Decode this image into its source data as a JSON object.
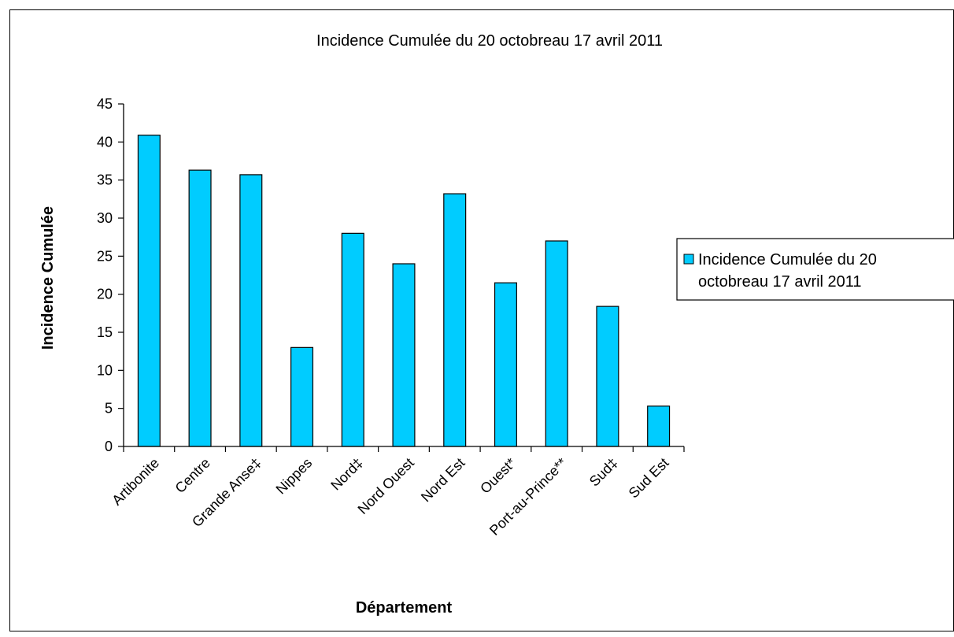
{
  "chart_data": {
    "type": "bar",
    "title": "Incidence Cumulée du 20 octobreau 17 avril 2011",
    "xlabel": "Département",
    "ylabel": "Incidence Cumulée",
    "categories": [
      "Artibonite",
      "Centre",
      "Grande Anse‡",
      "Nippes",
      "Nord‡",
      "Nord Ouest",
      "Nord Est",
      "Ouest*",
      "Port-au-Prince**",
      "Sud‡",
      "Sud Est"
    ],
    "series": [
      {
        "name": "Incidence Cumulée du 20 octobreau 17 avril 2011",
        "legend_lines": [
          "Incidence Cumulée du 20",
          "octobreau 17 avril 2011"
        ],
        "values": [
          40.9,
          36.3,
          35.7,
          13.0,
          28.0,
          24.0,
          33.2,
          21.5,
          27.0,
          18.4,
          5.3
        ],
        "color": "#00CCFF"
      }
    ],
    "ylim": [
      0,
      45
    ],
    "yticks": [
      0,
      5,
      10,
      15,
      20,
      25,
      30,
      35,
      40,
      45
    ],
    "grid": false,
    "legend_position": "right"
  }
}
